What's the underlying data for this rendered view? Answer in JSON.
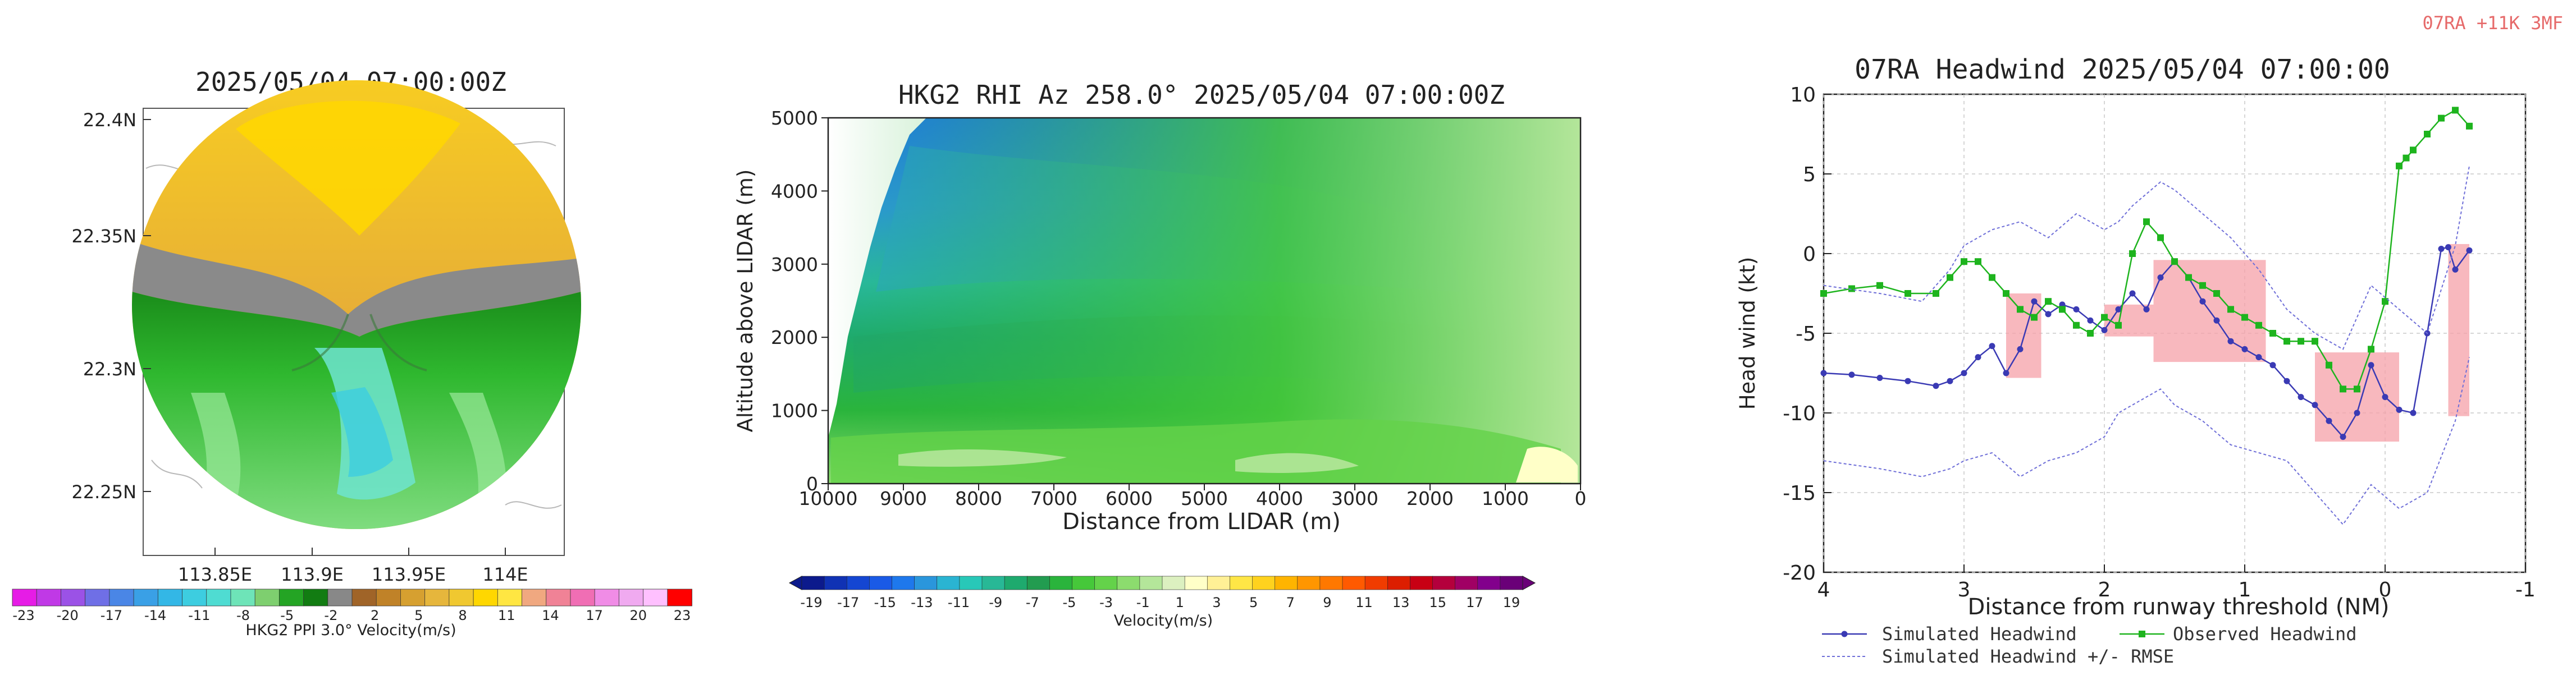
{
  "corner_tag": "07RA +11K 3MF",
  "chart_data": [
    {
      "type": "heatmap",
      "title": "2025/05/04 07:00:00Z",
      "x_ticks": [
        "113.85E",
        "113.9E",
        "113.95E",
        "114E"
      ],
      "y_ticks": [
        "22.4N",
        "22.35N",
        "22.3N",
        "22.25N"
      ],
      "colorbar": {
        "label": "HKG2 PPI 3.0° Velocity(m/s)",
        "ticks": [
          "-23",
          "-20",
          "-17",
          "-14",
          "-11",
          "-8",
          "-5",
          "-2",
          "2",
          "5",
          "8",
          "11",
          "14",
          "17",
          "20",
          "23"
        ],
        "colors": [
          "#e61ce6",
          "#c039e6",
          "#9b52e6",
          "#6f6fe6",
          "#4a86e6",
          "#3aa0e6",
          "#33b7e6",
          "#3dcde0",
          "#4fdcd2",
          "#6ee4b8",
          "#7ecf6f",
          "#24a424",
          "#127c12",
          "#888888",
          "#a06428",
          "#c08228",
          "#d6a030",
          "#e6b63c",
          "#f0c830",
          "#ffd700",
          "#ffe642",
          "#f0a880",
          "#f08296",
          "#f06eb4",
          "#f08ce6",
          "#f0aaf0",
          "#ffc0ff",
          "#ff0000"
        ]
      }
    },
    {
      "type": "heatmap",
      "title": "HKG2 RHI Az 258.0° 2025/05/04 07:00:00Z",
      "xlabel": "Distance from LIDAR (m)",
      "ylabel": "Altitude above LIDAR (m)",
      "x_ticks": [
        "10000",
        "9000",
        "8000",
        "7000",
        "6000",
        "5000",
        "4000",
        "3000",
        "2000",
        "1000",
        "0"
      ],
      "y_ticks": [
        "0",
        "1000",
        "2000",
        "3000",
        "4000",
        "5000"
      ],
      "xlim": [
        10000,
        0
      ],
      "ylim": [
        0,
        5000
      ],
      "colorbar": {
        "label": "Velocity(m/s)",
        "ticks": [
          "-19",
          "-17",
          "-15",
          "-13",
          "-11",
          "-9",
          "-7",
          "-5",
          "-3",
          "-1",
          "1",
          "3",
          "5",
          "7",
          "9",
          "11",
          "13",
          "15",
          "17",
          "19"
        ],
        "colors": [
          "#0c1a8c",
          "#1032b4",
          "#1446d2",
          "#1a5ae6",
          "#1e78ec",
          "#2a96dc",
          "#2ab4d2",
          "#28c8b8",
          "#28b896",
          "#1eaa6e",
          "#229c50",
          "#2ab43c",
          "#46c83a",
          "#64d24a",
          "#8cdc6e",
          "#b4e69a",
          "#dcf0c0",
          "#ffffc8",
          "#fff096",
          "#ffe646",
          "#ffd21e",
          "#ffb400",
          "#ff9600",
          "#ff7800",
          "#ff5a00",
          "#f03c00",
          "#dc1e00",
          "#c80014",
          "#b4003c",
          "#a00064",
          "#82008c",
          "#6a0078"
        ]
      }
    },
    {
      "type": "line",
      "title": "07RA Headwind 2025/05/04 07:00:00",
      "xlabel": "Distance from runway threshold (NM)",
      "ylabel": "Head wind (kt)",
      "xlim": [
        4,
        -1
      ],
      "ylim": [
        -20,
        10
      ],
      "x_ticks": [
        "4",
        "3",
        "2",
        "1",
        "0",
        "-1"
      ],
      "y_ticks": [
        "10",
        "5",
        "0",
        "-5",
        "-10",
        "-15",
        "-20"
      ],
      "grid": true,
      "legend_position": "bottom",
      "series": [
        {
          "name": "Simulated Headwind",
          "color": "#3a3ab4",
          "x": [
            4.0,
            3.8,
            3.6,
            3.4,
            3.2,
            3.1,
            3.0,
            2.9,
            2.8,
            2.7,
            2.6,
            2.5,
            2.4,
            2.3,
            2.2,
            2.1,
            2.0,
            1.9,
            1.8,
            1.7,
            1.6,
            1.5,
            1.4,
            1.3,
            1.2,
            1.1,
            1.0,
            0.9,
            0.8,
            0.7,
            0.6,
            0.5,
            0.4,
            0.3,
            0.2,
            0.1,
            0.0,
            -0.1,
            -0.2,
            -0.3,
            -0.4,
            -0.45,
            -0.5,
            -0.6
          ],
          "y": [
            -7.5,
            -7.6,
            -7.8,
            -8.0,
            -8.3,
            -8.0,
            -7.5,
            -6.5,
            -5.8,
            -7.5,
            -6.0,
            -3.0,
            -3.8,
            -3.2,
            -3.5,
            -4.2,
            -4.8,
            -3.5,
            -2.5,
            -3.5,
            -1.5,
            -0.5,
            -1.5,
            -3.0,
            -4.2,
            -5.5,
            -6.0,
            -6.5,
            -7.0,
            -8.0,
            -9.0,
            -9.5,
            -10.5,
            -11.5,
            -10.0,
            -7.0,
            -9.0,
            -9.8,
            -10.0,
            -5.0,
            0.3,
            0.4,
            -1.0,
            0.2
          ]
        },
        {
          "name": "Observed Headwind",
          "color": "#1eb41e",
          "x": [
            4.0,
            3.8,
            3.6,
            3.4,
            3.2,
            3.1,
            3.0,
            2.9,
            2.8,
            2.7,
            2.6,
            2.5,
            2.4,
            2.3,
            2.2,
            2.1,
            2.0,
            1.9,
            1.8,
            1.7,
            1.6,
            1.5,
            1.4,
            1.3,
            1.2,
            1.1,
            1.0,
            0.9,
            0.8,
            0.7,
            0.6,
            0.5,
            0.4,
            0.3,
            0.2,
            0.1,
            0.0,
            -0.1,
            -0.15,
            -0.2,
            -0.3,
            -0.4,
            -0.5,
            -0.6
          ],
          "y": [
            -2.5,
            -2.2,
            -2.0,
            -2.5,
            -2.5,
            -1.5,
            -0.5,
            -0.5,
            -1.5,
            -2.5,
            -3.5,
            -4.0,
            -3.0,
            -3.5,
            -4.5,
            -5.0,
            -4.0,
            -4.5,
            0.0,
            2.0,
            1.0,
            -0.5,
            -1.5,
            -2.0,
            -2.5,
            -3.5,
            -4.0,
            -4.5,
            -5.0,
            -5.5,
            -5.5,
            -5.5,
            -7.0,
            -8.5,
            -8.5,
            -6.0,
            -3.0,
            5.5,
            6.0,
            6.5,
            7.5,
            8.5,
            9.0,
            8.0
          ]
        },
        {
          "name": "Simulated Headwind +/- RMSE",
          "color": "#6f6fd8",
          "x": [
            4.0,
            3.6,
            3.3,
            3.1,
            3.0,
            2.8,
            2.6,
            2.4,
            2.2,
            2.0,
            1.9,
            1.8,
            1.6,
            1.5,
            1.3,
            1.1,
            0.9,
            0.7,
            0.5,
            0.3,
            0.1,
            -0.1,
            -0.3,
            -0.5,
            -0.6
          ],
          "y": [
            -2.0,
            -2.5,
            -3.0,
            -1.0,
            0.5,
            1.5,
            2.0,
            1.0,
            2.5,
            1.5,
            2.0,
            3.0,
            4.5,
            4.0,
            2.5,
            1.0,
            -1.0,
            -3.5,
            -5.0,
            -6.0,
            -2.0,
            -3.5,
            -5.0,
            0.5,
            5.5
          ]
        },
        {
          "name": "Simulated Headwind +/- RMSE",
          "color": "#6f6fd8",
          "x": [
            4.0,
            3.6,
            3.3,
            3.1,
            3.0,
            2.8,
            2.6,
            2.4,
            2.2,
            2.0,
            1.9,
            1.8,
            1.6,
            1.5,
            1.3,
            1.1,
            0.9,
            0.7,
            0.5,
            0.3,
            0.1,
            -0.1,
            -0.3,
            -0.5,
            -0.6
          ],
          "y": [
            -13.0,
            -13.5,
            -14.0,
            -13.5,
            -13.0,
            -12.5,
            -14.0,
            -13.0,
            -12.5,
            -11.5,
            -10.0,
            -9.5,
            -8.5,
            -9.5,
            -10.5,
            -12.0,
            -12.5,
            -13.0,
            -15.0,
            -17.0,
            -14.5,
            -16.0,
            -15.0,
            -10.5,
            -6.5
          ]
        }
      ],
      "shaded_regions": [
        {
          "x": [
            2.7,
            2.45
          ],
          "y": [
            -7.8,
            -2.5
          ]
        },
        {
          "x": [
            2.0,
            1.65
          ],
          "y": [
            -5.2,
            -3.2
          ]
        },
        {
          "x": [
            1.65,
            0.85
          ],
          "y": [
            -6.8,
            -0.4
          ]
        },
        {
          "x": [
            0.5,
            -0.1
          ],
          "y": [
            -11.8,
            -6.2
          ]
        },
        {
          "x": [
            -0.45,
            -0.6
          ],
          "y": [
            -10.2,
            0.6
          ]
        }
      ]
    }
  ]
}
